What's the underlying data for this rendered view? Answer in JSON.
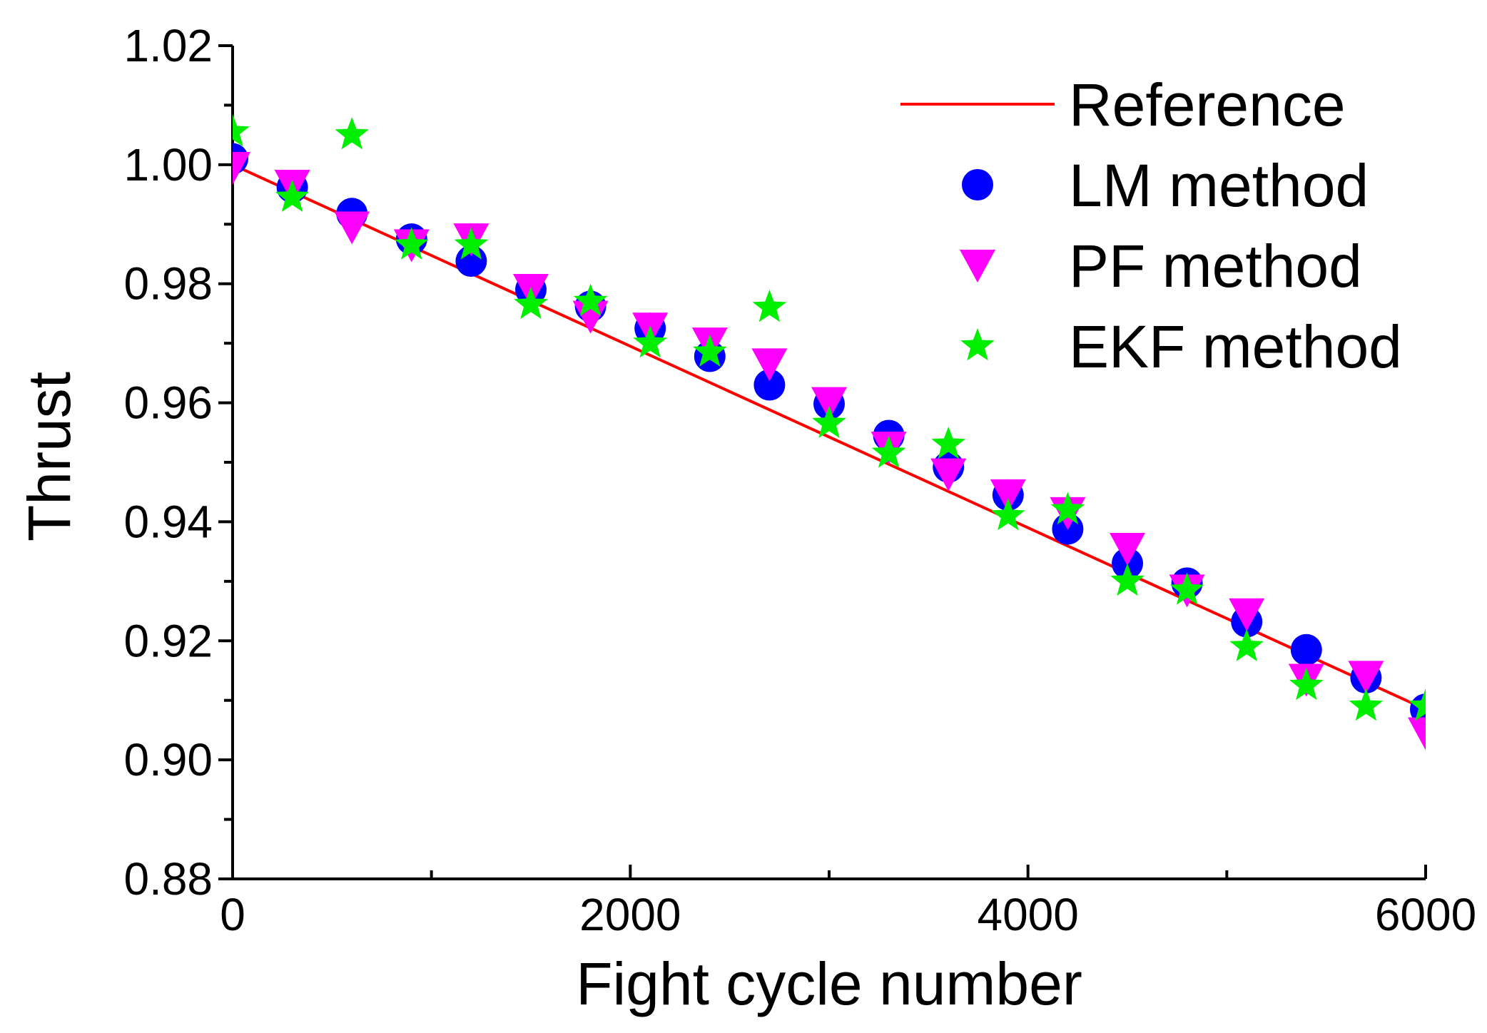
{
  "chart_data": {
    "type": "scatter",
    "title": "",
    "xlabel": "Fight cycle number",
    "ylabel": "Thrust",
    "xlim": [
      0,
      6000
    ],
    "ylim": [
      0.88,
      1.02
    ],
    "xticks": [
      0,
      2000,
      4000,
      6000
    ],
    "xtick_labels": [
      "0",
      "2000",
      "4000",
      "6000"
    ],
    "yticks": [
      0.88,
      0.9,
      0.92,
      0.94,
      0.96,
      0.98,
      1.0,
      1.02
    ],
    "ytick_labels": [
      "0.88",
      "0.90",
      "0.92",
      "0.94",
      "0.96",
      "0.98",
      "1.00",
      "1.02"
    ],
    "grid": false,
    "legend_position": "top-right",
    "x": [
      0,
      300,
      600,
      900,
      1200,
      1500,
      1800,
      2100,
      2400,
      2700,
      3000,
      3300,
      3600,
      3900,
      4200,
      4500,
      4800,
      5100,
      5400,
      5700,
      6000
    ],
    "series": [
      {
        "name": "Reference",
        "marker": "line",
        "color": "#ff0000",
        "x": [
          0,
          6000
        ],
        "values": [
          1.0,
          0.9085
        ]
      },
      {
        "name": "LM method",
        "marker": "circle",
        "color": "#0000ff",
        "values": [
          1.001,
          0.9962,
          0.9918,
          0.9875,
          0.9838,
          0.979,
          0.9762,
          0.9725,
          0.9678,
          0.963,
          0.9598,
          0.9545,
          0.9492,
          0.9445,
          0.9388,
          0.933,
          0.9297,
          0.9232,
          0.9185,
          0.9138,
          0.9085
        ]
      },
      {
        "name": "PF method",
        "marker": "triangle-down",
        "color": "#ff00ff",
        "values": [
          0.9995,
          0.9965,
          0.9895,
          0.9865,
          0.9875,
          0.979,
          0.9745,
          0.9725,
          0.97,
          0.9665,
          0.96,
          0.9525,
          0.948,
          0.9445,
          0.9415,
          0.9355,
          0.9285,
          0.9245,
          0.9135,
          0.914,
          0.9045
        ]
      },
      {
        "name": "EKF method",
        "marker": "star",
        "color": "#00ee00",
        "values": [
          1.0055,
          0.9945,
          1.005,
          0.9865,
          0.9865,
          0.9765,
          0.977,
          0.97,
          0.9685,
          0.976,
          0.9565,
          0.9515,
          0.953,
          0.941,
          0.942,
          0.93,
          0.9285,
          0.919,
          0.9125,
          0.909,
          0.909
        ]
      }
    ]
  }
}
